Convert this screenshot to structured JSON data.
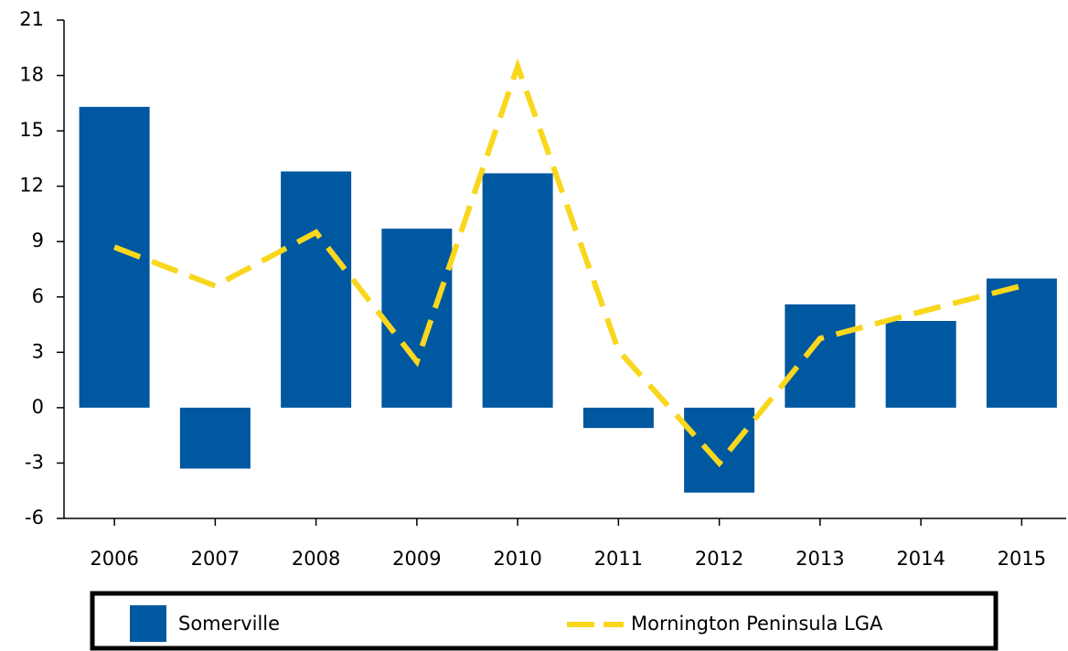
{
  "chart_data": {
    "type": "bar-line",
    "categories": [
      "2006",
      "2007",
      "2008",
      "2009",
      "2010",
      "2011",
      "2012",
      "2013",
      "2014",
      "2015"
    ],
    "series": [
      {
        "name": "Somerville",
        "type": "bar",
        "color": "#0058a0",
        "values": [
          16.3,
          -3.3,
          12.8,
          9.7,
          12.7,
          -1.1,
          -4.6,
          5.6,
          4.7,
          7.0
        ]
      },
      {
        "name": "Mornington Peninsula LGA",
        "type": "line",
        "color": "#f9d71c",
        "values": [
          8.7,
          6.6,
          9.5,
          2.5,
          18.5,
          3.1,
          -3.0,
          3.75,
          5.2,
          6.6
        ]
      }
    ],
    "ylim": [
      -6,
      21
    ],
    "yticks": [
      -6,
      -3,
      0,
      3,
      6,
      9,
      12,
      15,
      18,
      21
    ],
    "grid": false
  }
}
